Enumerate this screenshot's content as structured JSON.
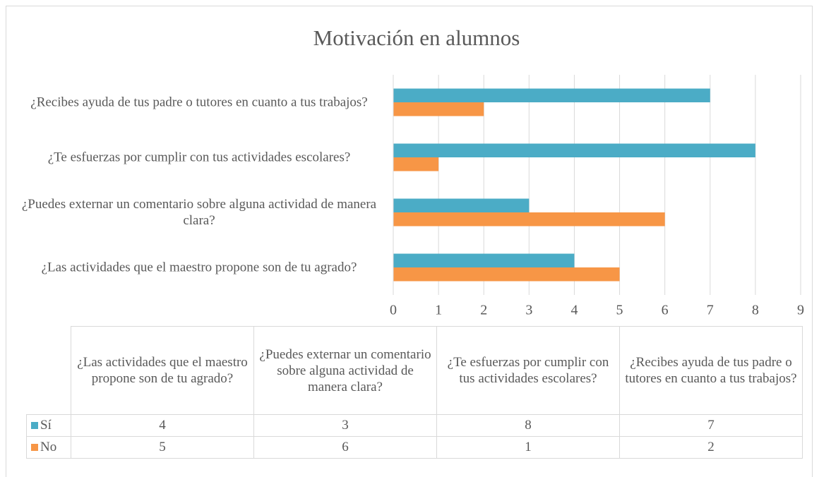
{
  "chart_data": {
    "type": "hbar",
    "title": "Motivación en alumnos",
    "categories": [
      "¿Las actividades que el maestro propone son de tu agrado?",
      "¿Puedes externar un comentario sobre alguna actividad de manera clara?",
      "¿Te esfuerzas por cumplir con tus actividades escolares?",
      "¿Recibes ayuda de tus padre o tutores en cuanto a tus trabajos?"
    ],
    "series": [
      {
        "name": "Sí",
        "color": "#4bacc6",
        "values": [
          4,
          3,
          8,
          7
        ]
      },
      {
        "name": "No",
        "color": "#f79646",
        "values": [
          5,
          6,
          1,
          2
        ]
      }
    ],
    "xlim": [
      0,
      9
    ],
    "xticks": [
      0,
      1,
      2,
      3,
      4,
      5,
      6,
      7,
      8,
      9
    ],
    "grid": true,
    "data_table": true
  }
}
